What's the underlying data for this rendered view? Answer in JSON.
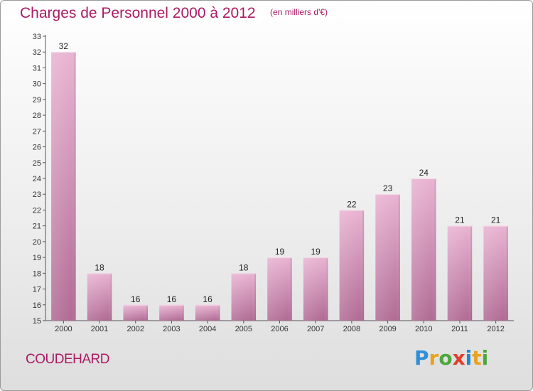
{
  "header": {
    "title": "Charges de Personnel 2000 à 2012",
    "subtitle": "(en milliers d'€)"
  },
  "footer": {
    "commune": "COUDEHARD",
    "brand": "Proxiti"
  },
  "colors": {
    "bar_light": "#e9b3d2",
    "bar_dark": "#b06a93",
    "title": "#ab1a63"
  },
  "chart_data": {
    "type": "bar",
    "categories": [
      "2000",
      "2001",
      "2002",
      "2003",
      "2004",
      "2005",
      "2006",
      "2007",
      "2008",
      "2009",
      "2010",
      "2011",
      "2012"
    ],
    "values": [
      32,
      18,
      16,
      16,
      16,
      18,
      19,
      19,
      22,
      23,
      24,
      21,
      21
    ],
    "title": "Charges de Personnel 2000 à 2012",
    "subtitle": "(en milliers d'€)",
    "xlabel": "",
    "ylabel": "",
    "ylim": [
      15,
      33
    ],
    "yticks": [
      15,
      16,
      17,
      18,
      19,
      20,
      21,
      22,
      23,
      24,
      25,
      26,
      27,
      28,
      29,
      30,
      31,
      32,
      33
    ],
    "data_labels": true,
    "grid": false,
    "legend": "none"
  }
}
